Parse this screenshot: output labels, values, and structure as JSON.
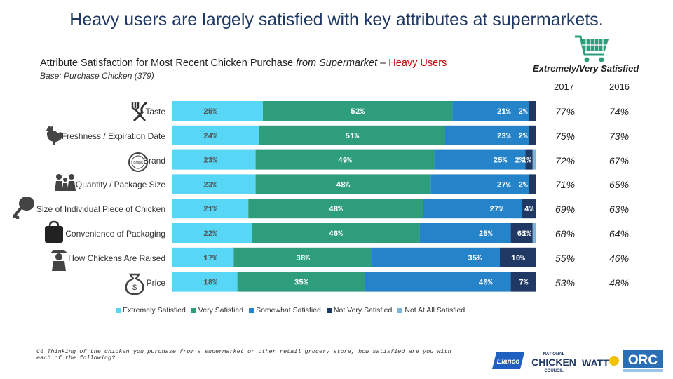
{
  "title": "Heavy users are largely satisfied with key attributes at supermarkets.",
  "subtitle": {
    "part1": "Attribute ",
    "underlined": "Satisfaction",
    "part2": " for Most Recent Chicken Purchase ",
    "italic": "from Supermarket",
    "part3": " – ",
    "highlight": "Heavy Users"
  },
  "base": "Base: Purchase Chicken (379)",
  "extremely_very_header": "Extremely/Very Satisfied",
  "year_headers": [
    "2017",
    "2016"
  ],
  "colors": {
    "extremely": "#57d6f5",
    "very": "#2e9d7b",
    "somewhat": "#2583c9",
    "not_very": "#1f3864",
    "not_at_all": "#7fb4d9",
    "title": "#1f3864",
    "highlight": "#c00000"
  },
  "icons": [
    "knife-fork-icon",
    "rooster-icon",
    "brand-seal-icon",
    "family-icon",
    "drumstick-icon",
    "package-icon",
    "farmer-icon",
    "money-bag-icon",
    "shopping-cart-icon"
  ],
  "chart_data": {
    "type": "bar",
    "orientation": "horizontal-stacked",
    "categories": [
      "Taste",
      "Freshness / Expiration Date",
      "Brand",
      "Quantity / Package Size",
      "Size of Individual Piece of Chicken",
      "Convenience of Packaging",
      "How Chickens Are Raised",
      "Price"
    ],
    "series": [
      {
        "name": "Extremely Satisfied",
        "values": [
          25,
          24,
          23,
          23,
          21,
          22,
          17,
          18
        ],
        "labels": [
          "25%",
          "24%",
          "23%",
          "23%",
          "21%",
          "22%",
          "17%",
          "18%"
        ]
      },
      {
        "name": "Very Satisfied",
        "values": [
          52,
          51,
          49,
          48,
          48,
          46,
          38,
          35
        ],
        "labels": [
          "52%",
          "51%",
          "49%",
          "48%",
          "48%",
          "46%",
          "38%",
          "35%"
        ]
      },
      {
        "name": "Somewhat Satisfied",
        "values": [
          21,
          23,
          25,
          27,
          27,
          25,
          35,
          40
        ],
        "labels": [
          "21%",
          "23%",
          "25%",
          "27%",
          "27%",
          "25%",
          "35%",
          "40%"
        ]
      },
      {
        "name": "Not Very Satisfied",
        "values": [
          2,
          2,
          2,
          2,
          4,
          6,
          10,
          7
        ],
        "labels": [
          "2%",
          "2%",
          "2%",
          "2%",
          "4%",
          "6%",
          "10%",
          "7%"
        ]
      },
      {
        "name": "Not At All Satisfied",
        "values": [
          0,
          0,
          1,
          0,
          0,
          1,
          0,
          0
        ],
        "labels": [
          "",
          "",
          "1%",
          "",
          "",
          "1%",
          "",
          ""
        ]
      }
    ],
    "extremely_very_2017": [
      "77%",
      "75%",
      "72%",
      "71%",
      "69%",
      "68%",
      "55%",
      "53%"
    ],
    "extremely_very_2016": [
      "74%",
      "73%",
      "67%",
      "65%",
      "63%",
      "64%",
      "46%",
      "48%"
    ],
    "legend_position": "bottom",
    "grid": false
  },
  "footnote": "C6 Thinking of the chicken you purchase from a supermarket or other retail grocery store, how satisfied are you with each of the following?",
  "logos": {
    "elanco": "Elanco",
    "ncc_top": "NATIONAL",
    "ncc_mid": "CHICKEN",
    "ncc_bot": "COUNCIL",
    "watt": "WATT",
    "orc": "ORC"
  }
}
